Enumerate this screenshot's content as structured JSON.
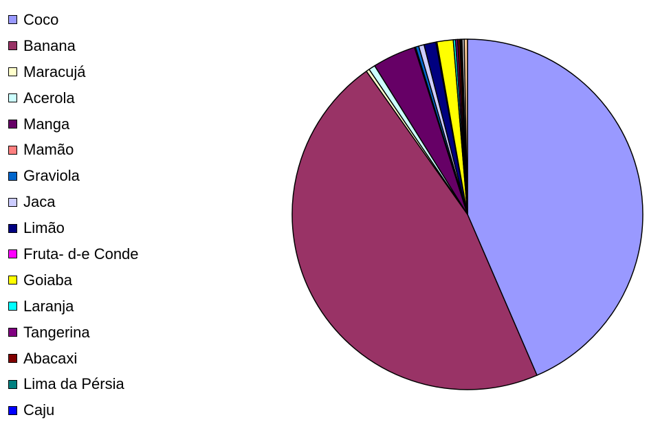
{
  "chart_data": {
    "type": "pie",
    "title": "",
    "legend_position": "left",
    "start_angle": "12 o'clock, clockwise",
    "slices": [
      {
        "label": "Coco",
        "value": 43.6,
        "color": "#9999FF"
      },
      {
        "label": "Banana",
        "value": 46.8,
        "color": "#993366"
      },
      {
        "label": "Maracujá",
        "value": 0.3,
        "color": "#FFFFCC"
      },
      {
        "label": "Acerola",
        "value": 0.6,
        "color": "#CCFFFF"
      },
      {
        "label": "Manga",
        "value": 4.0,
        "color": "#660066"
      },
      {
        "label": "Mamão",
        "value": 0.1,
        "color": "#FF8080"
      },
      {
        "label": "Graviola",
        "value": 0.3,
        "color": "#0066CC"
      },
      {
        "label": "Jaca",
        "value": 0.5,
        "color": "#CCCCFF"
      },
      {
        "label": "Limão",
        "value": 1.1,
        "color": "#000080"
      },
      {
        "label": "Fruta- d-e Conde",
        "value": 0.1,
        "color": "#FF00FF"
      },
      {
        "label": "Goiaba",
        "value": 1.5,
        "color": "#FFFF00"
      },
      {
        "label": "Laranja",
        "value": 0.2,
        "color": "#00FFFF"
      },
      {
        "label": "Tangerina",
        "value": 0.2,
        "color": "#800080"
      },
      {
        "label": "Abacaxi",
        "value": 0.2,
        "color": "#800000"
      },
      {
        "label": "Lima da Pérsia",
        "value": 0.1,
        "color": "#008080"
      },
      {
        "label": "Caju",
        "value": 0.1,
        "color": "#0000FF"
      },
      {
        "label": "",
        "value": 0.2,
        "color": "#CCCCCC"
      },
      {
        "label": "",
        "value": 0.3,
        "color": "#FFCC99"
      }
    ]
  }
}
